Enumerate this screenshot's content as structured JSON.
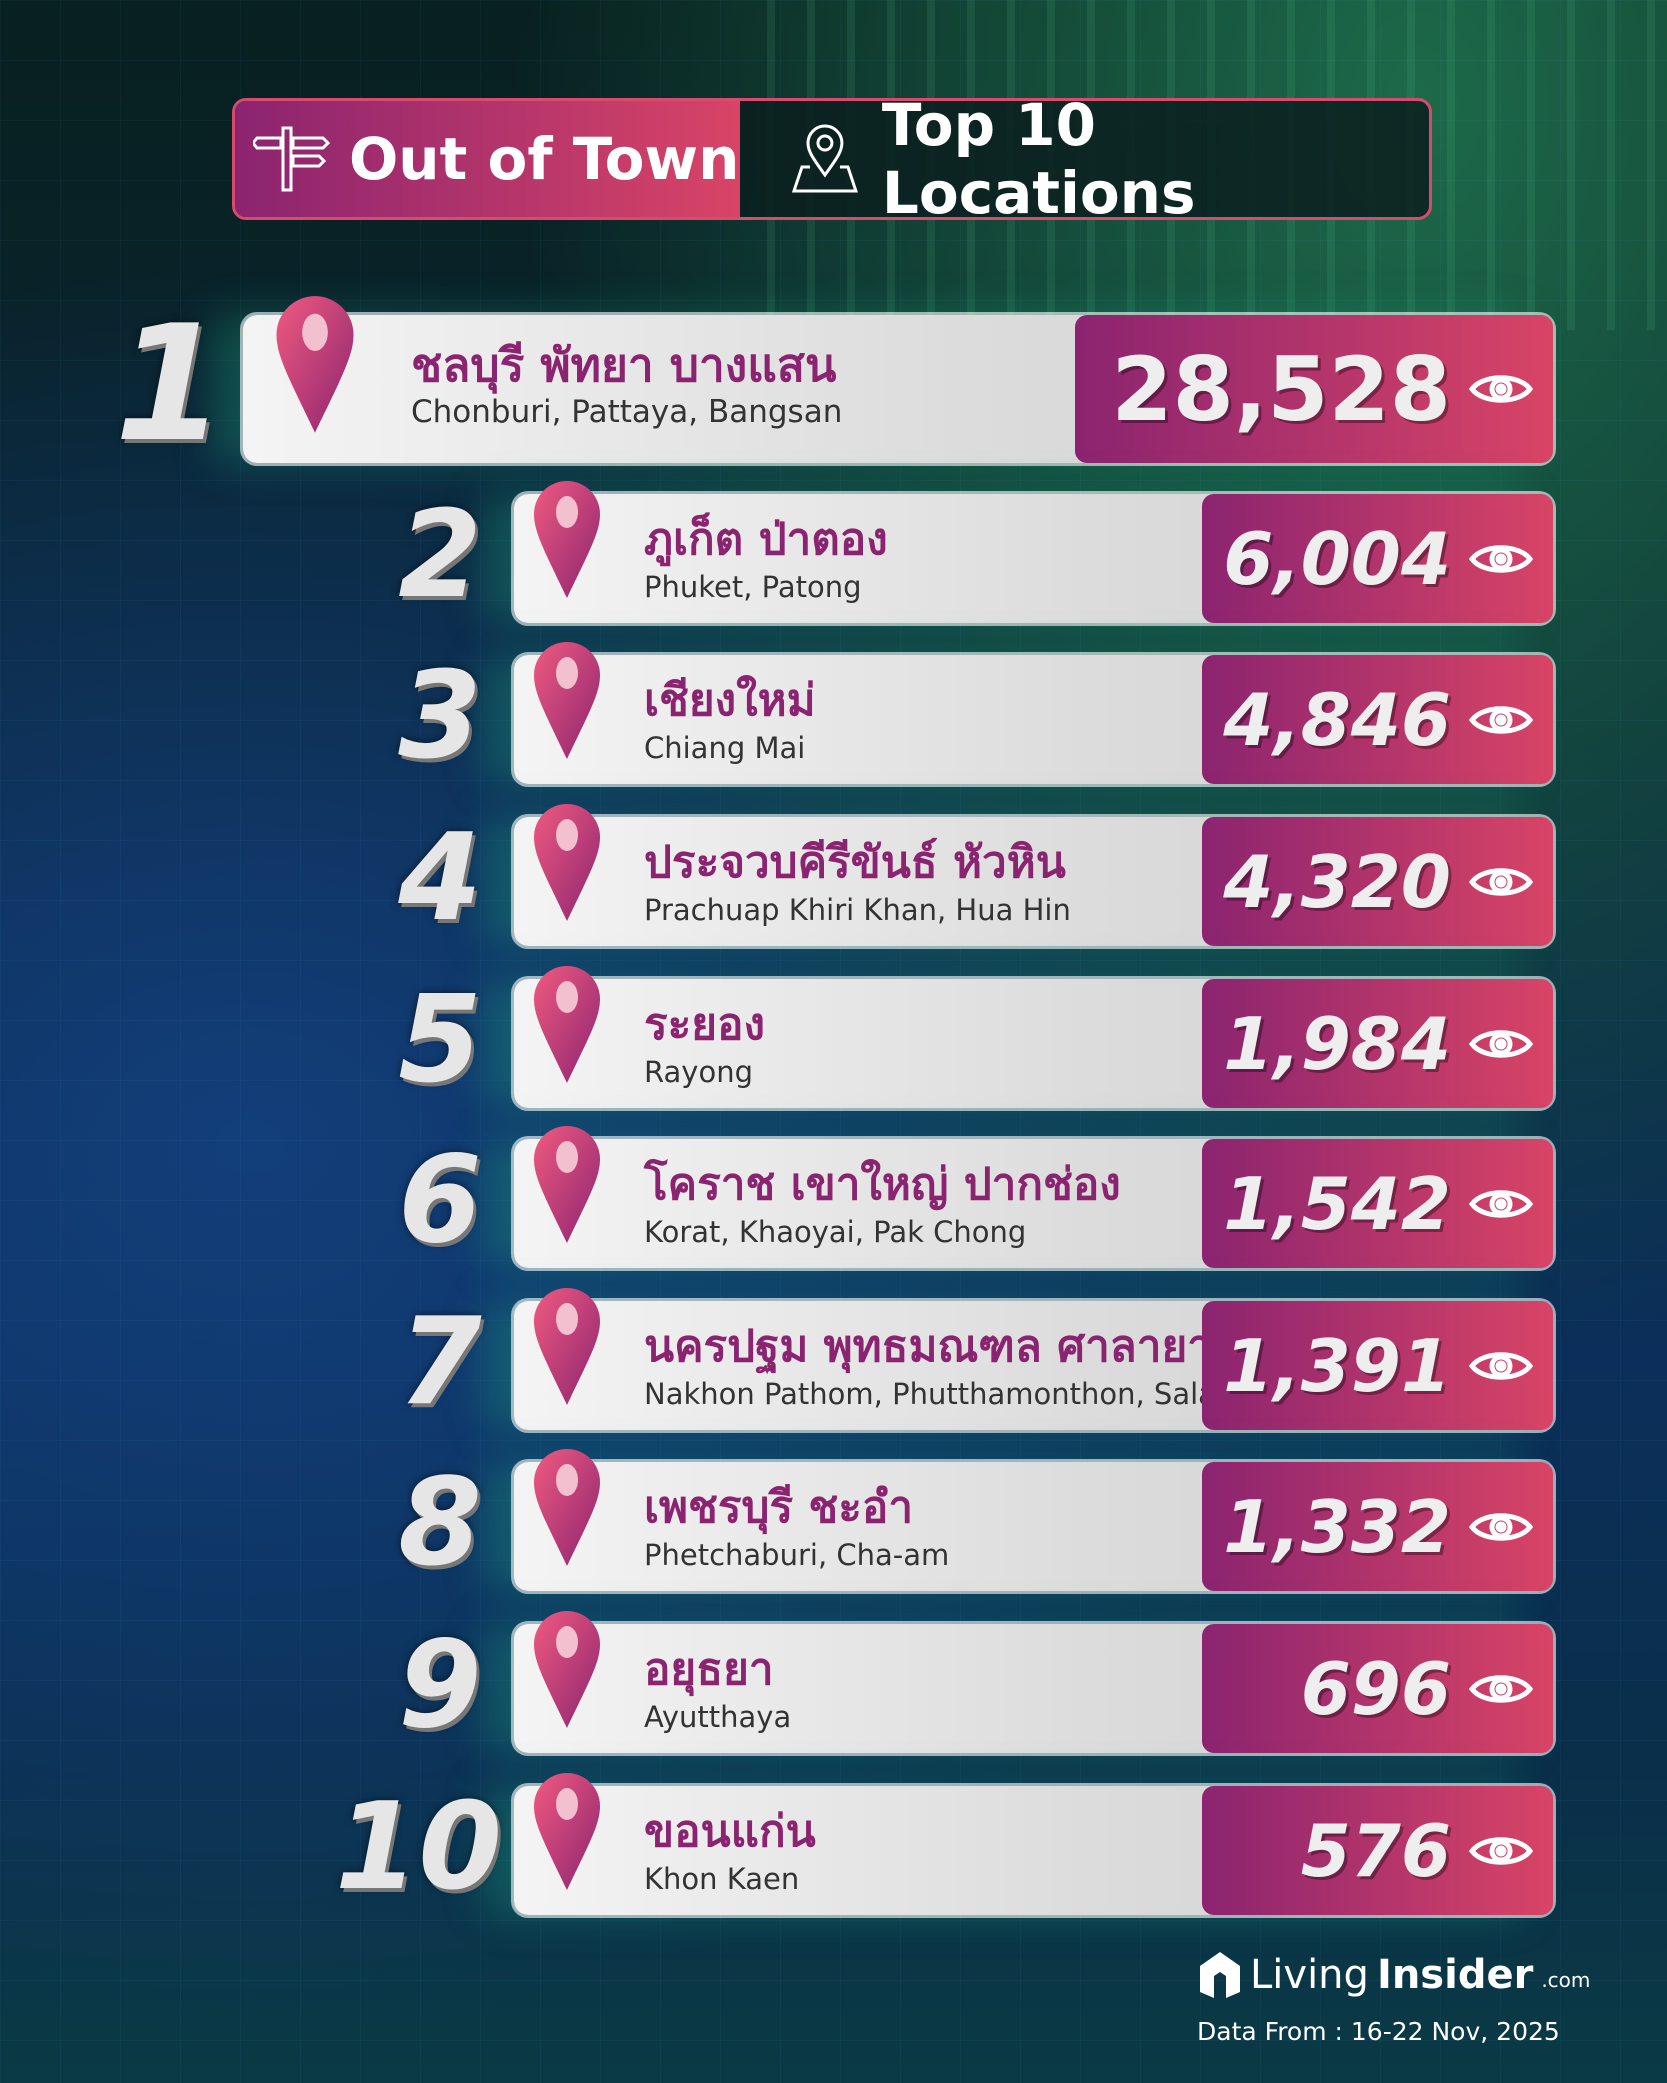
{
  "header": {
    "category": "Out of Town",
    "title": "Top 10 Locations",
    "category_icon": "signpost-icon",
    "title_icon": "map-pin-icon"
  },
  "colors": {
    "accent_start": "#8b2470",
    "accent_end": "#d84466",
    "thai_text": "#8b2470"
  },
  "locations": [
    {
      "rank": "1",
      "thai": "ชลบุรี พัทยา บางแสน",
      "english": "Chonburi, Pattaya, Bangsan",
      "views": "28,528"
    },
    {
      "rank": "2",
      "thai": "ภูเก็ต ป่าตอง",
      "english": "Phuket, Patong",
      "views": "6,004"
    },
    {
      "rank": "3",
      "thai": "เชียงใหม่",
      "english": "Chiang Mai",
      "views": "4,846"
    },
    {
      "rank": "4",
      "thai": "ประจวบคีรีขันธ์ หัวหิน",
      "english": "Prachuap Khiri Khan, Hua Hin",
      "views": "4,320"
    },
    {
      "rank": "5",
      "thai": "ระยอง",
      "english": "Rayong",
      "views": "1,984"
    },
    {
      "rank": "6",
      "thai": "โคราช เขาใหญ่ ปากช่อง",
      "english": "Korat, Khaoyai, Pak Chong",
      "views": "1,542"
    },
    {
      "rank": "7",
      "thai": "นครปฐม พุทธมณฑล ศาลายา",
      "english": "Nakhon Pathom, Phutthamonthon, Salaya",
      "views": "1,391"
    },
    {
      "rank": "8",
      "thai": "เพชรบุรี ชะอำ",
      "english": "Phetchaburi, Cha-am",
      "views": "1,332"
    },
    {
      "rank": "9",
      "thai": "อยุธยา",
      "english": "Ayutthaya",
      "views": "696"
    },
    {
      "rank": "10",
      "thai": "ขอนแก่น",
      "english": "Khon Kaen",
      "views": "576"
    }
  ],
  "footer": {
    "logo_light": "Living",
    "logo_bold": "Insider",
    "logo_suffix": ".com",
    "date": "Data From : 16-22 Nov, 2025"
  }
}
